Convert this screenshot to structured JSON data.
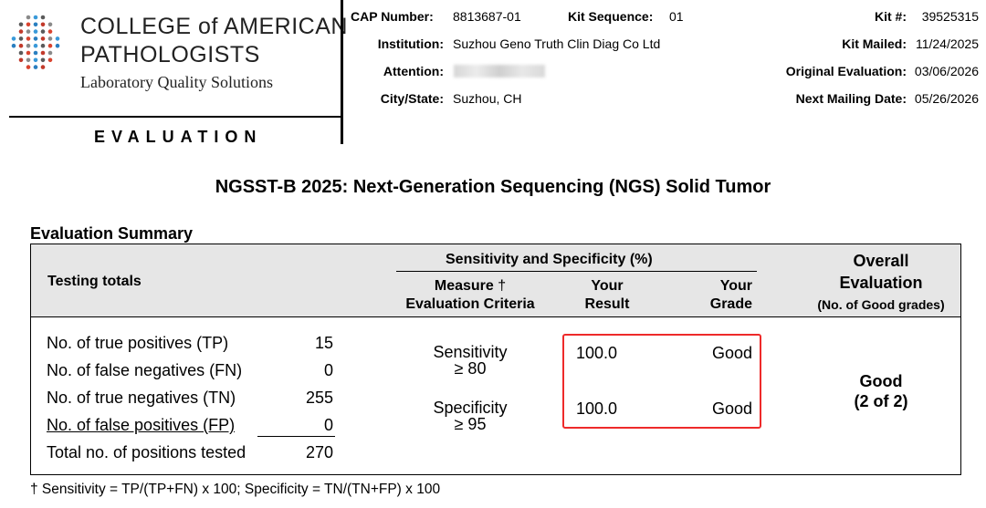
{
  "logo": {
    "line1": "COLLEGE of AMERICAN",
    "line2": "PATHOLOGISTS",
    "tagline": "Laboratory Quality Solutions"
  },
  "section_label": "EVALUATION",
  "header": {
    "cap_number_label": "CAP Number:",
    "cap_number": "8813687-01",
    "kit_sequence_label": "Kit Sequence:",
    "kit_sequence": "01",
    "kit_number_label": "Kit #:",
    "kit_number": "39525315",
    "institution_label": "Institution:",
    "institution": "Suzhou Geno Truth Clin Diag Co Ltd",
    "kit_mailed_label": "Kit Mailed:",
    "kit_mailed": "11/24/2025",
    "attention_label": "Attention:",
    "original_evaluation_label": "Original Evaluation:",
    "original_evaluation": "03/06/2026",
    "city_state_label": "City/State:",
    "city_state": "Suzhou, CH",
    "next_mailing_label": "Next Mailing Date:",
    "next_mailing": "05/26/2026"
  },
  "title": "NGSST-B 2025: Next-Generation Sequencing (NGS) Solid Tumor",
  "summary": {
    "heading": "Evaluation Summary",
    "col_testing_totals": "Testing totals",
    "col_group": "Sensitivity and Specificity (%)",
    "col_measure": "Measure",
    "dagger": "†",
    "col_criteria": "Evaluation Criteria",
    "col_result_1": "Your",
    "col_result_2": "Result",
    "col_grade_1": "Your",
    "col_grade_2": "Grade",
    "col_overall_1": "Overall",
    "col_overall_2": "Evaluation",
    "col_overall_3": "(No. of Good grades)",
    "totals": [
      {
        "label": "No. of true positives (TP)",
        "value": "15"
      },
      {
        "label": "No. of false negatives (FN)",
        "value": "0"
      },
      {
        "label": "No. of true negatives (TN)",
        "value": "255"
      },
      {
        "label": "No. of false positives (FP)",
        "value": "0"
      },
      {
        "label": "Total no. of positions tested",
        "value": "270"
      }
    ],
    "measures": [
      {
        "name": "Sensitivity",
        "criteria": "≥ 80",
        "result": "100.0",
        "grade": "Good"
      },
      {
        "name": "Specificity",
        "criteria": "≥ 95",
        "result": "100.0",
        "grade": "Good"
      }
    ],
    "overall_grade": "Good",
    "overall_count": "(2 of 2)"
  },
  "footnote": "† Sensitivity = TP/(TP+FN) x 100; Specificity = TN/(TN+FP) x 100",
  "colors": {
    "highlight": "#ee2a2a",
    "header_bg": "#e6e6e6"
  }
}
